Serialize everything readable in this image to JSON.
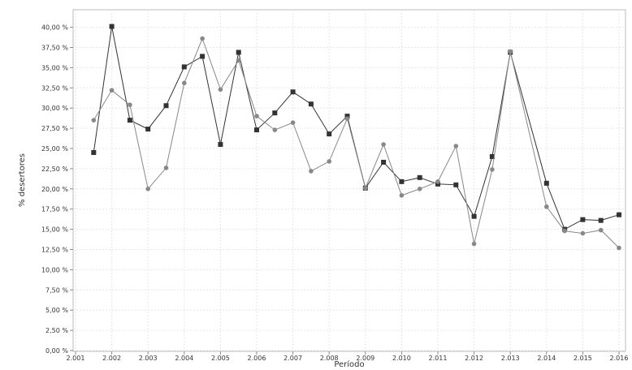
{
  "chart_data": {
    "type": "line",
    "xlabel": "Período",
    "ylabel": "% desertores",
    "x_ticks": [
      "2.001",
      "2.002",
      "2.003",
      "2.004",
      "2.005",
      "2.006",
      "2.007",
      "2.008",
      "2.009",
      "2.010",
      "2.011",
      "2.012",
      "2.013",
      "2.014",
      "2.015",
      "2.016"
    ],
    "y_ticks": [
      "0,00 %",
      "2,50 %",
      "5,00 %",
      "7,50 %",
      "10,00 %",
      "12,50 %",
      "15,00 %",
      "17,50 %",
      "20,00 %",
      "22,50 %",
      "25,00 %",
      "27,50 %",
      "30,00 %",
      "32,50 %",
      "35,00 %",
      "37,50 %",
      "40,00 %"
    ],
    "xlim": [
      2001,
      2016
    ],
    "ylim": [
      0,
      42
    ],
    "grid": true,
    "legend": "none",
    "x": [
      2001.5,
      2002,
      2002.5,
      2003,
      2003.5,
      2004,
      2004.5,
      2005,
      2005.5,
      2006,
      2006.5,
      2007,
      2007.5,
      2008,
      2008.5,
      2009,
      2009.5,
      2010,
      2010.5,
      2011,
      2011.5,
      2012,
      2012.5,
      2013,
      2014,
      2014.5,
      2015,
      2015.5,
      2016
    ],
    "series": [
      {
        "marker": "square",
        "color": "#333333",
        "values": [
          24.5,
          40.1,
          28.5,
          27.4,
          30.3,
          35.1,
          36.4,
          25.5,
          36.9,
          27.3,
          29.4,
          32.0,
          30.5,
          26.8,
          29.0,
          20.1,
          23.3,
          20.9,
          21.4,
          20.6,
          20.5,
          16.6,
          24.0,
          36.9,
          20.7,
          15.0,
          16.2,
          16.1,
          16.8
        ]
      },
      {
        "marker": "circle",
        "color": "#888888",
        "values": [
          28.5,
          32.2,
          30.4,
          20.0,
          22.6,
          33.1,
          38.6,
          32.3,
          35.9,
          29.0,
          27.3,
          28.2,
          22.2,
          23.4,
          28.7,
          20.1,
          25.5,
          19.2,
          20.0,
          20.9,
          25.3,
          13.2,
          22.4,
          37.0,
          17.8,
          14.8,
          14.5,
          14.9,
          12.7
        ]
      }
    ]
  }
}
